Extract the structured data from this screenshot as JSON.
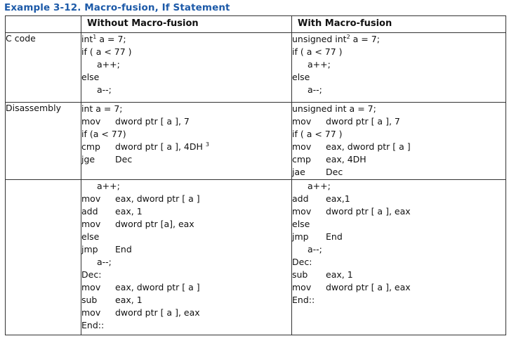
{
  "caption": "Example 3-12.  Macro-fusion, If Statement",
  "headers": [
    "",
    "Without Macro-fusion",
    "With Macro-fusion"
  ],
  "rows": [
    {
      "label": "C code",
      "without": [
        {
          "text": "int",
          "sup": "1",
          "rest": " a = 7;"
        },
        {
          "text": "if ( a < 77 )"
        },
        {
          "text": "a++;",
          "indent": true
        },
        {
          "text": "else"
        },
        {
          "text": "a--;",
          "indent": true
        }
      ],
      "with": [
        {
          "text": "unsigned int",
          "sup": "2",
          "rest": " a = 7;"
        },
        {
          "text": "if ( a < 77 )"
        },
        {
          "text": "a++;",
          "indent": true
        },
        {
          "text": "else"
        },
        {
          "text": "a--;",
          "indent": true
        }
      ]
    },
    {
      "label": "Disassembly",
      "without": [
        {
          "text": "int a = 7;"
        },
        {
          "op": "mov",
          "arg": "dword ptr [ a ], 7"
        },
        {
          "text": "if (a < 77)"
        },
        {
          "op": "cmp",
          "arg": "dword ptr [ a ], 4DH",
          "sup": "3"
        },
        {
          "op": "jge",
          "arg": "Dec"
        }
      ],
      "with": [
        {
          "text": "unsigned int a = 7;"
        },
        {
          "op": "mov",
          "arg": "dword ptr [ a ], 7"
        },
        {
          "text": "if ( a < 77 )"
        },
        {
          "op": "mov",
          "arg": "eax, dword ptr [ a ]"
        },
        {
          "op": "cmp",
          "arg": "eax, 4DH"
        },
        {
          "op": "jae",
          "arg": "Dec"
        }
      ]
    },
    {
      "label": "",
      "without": [
        {
          "text": "a++;",
          "indent": true
        },
        {
          "op": "mov",
          "arg": "eax, dword ptr [ a ]"
        },
        {
          "op": "add",
          "arg": "eax, 1"
        },
        {
          "op": "mov",
          "arg": "dword ptr [a], eax"
        },
        {
          "text": "else"
        },
        {
          "op": "jmp",
          "arg": "End"
        },
        {
          "text": "a--;",
          "indent": true
        },
        {
          "text": "Dec:"
        },
        {
          "op": "mov",
          "arg": "eax, dword ptr [ a ]"
        },
        {
          "op": "sub",
          "arg": "eax, 1"
        },
        {
          "op": "mov",
          "arg": "dword ptr [ a ], eax"
        },
        {
          "text": "End::"
        }
      ],
      "with": [
        {
          "text": "a++;",
          "indent": true
        },
        {
          "op": "add",
          "arg": "eax,1"
        },
        {
          "op": "mov",
          "arg": "dword ptr [ a ], eax"
        },
        {
          "text": "else"
        },
        {
          "op": "jmp",
          "arg": "End"
        },
        {
          "text": "a--;",
          "indent": true
        },
        {
          "text": "Dec:"
        },
        {
          "op": "sub",
          "arg": "eax, 1"
        },
        {
          "op": "mov",
          "arg": "dword ptr [ a ], eax"
        },
        {
          "text": "End::"
        }
      ]
    }
  ]
}
